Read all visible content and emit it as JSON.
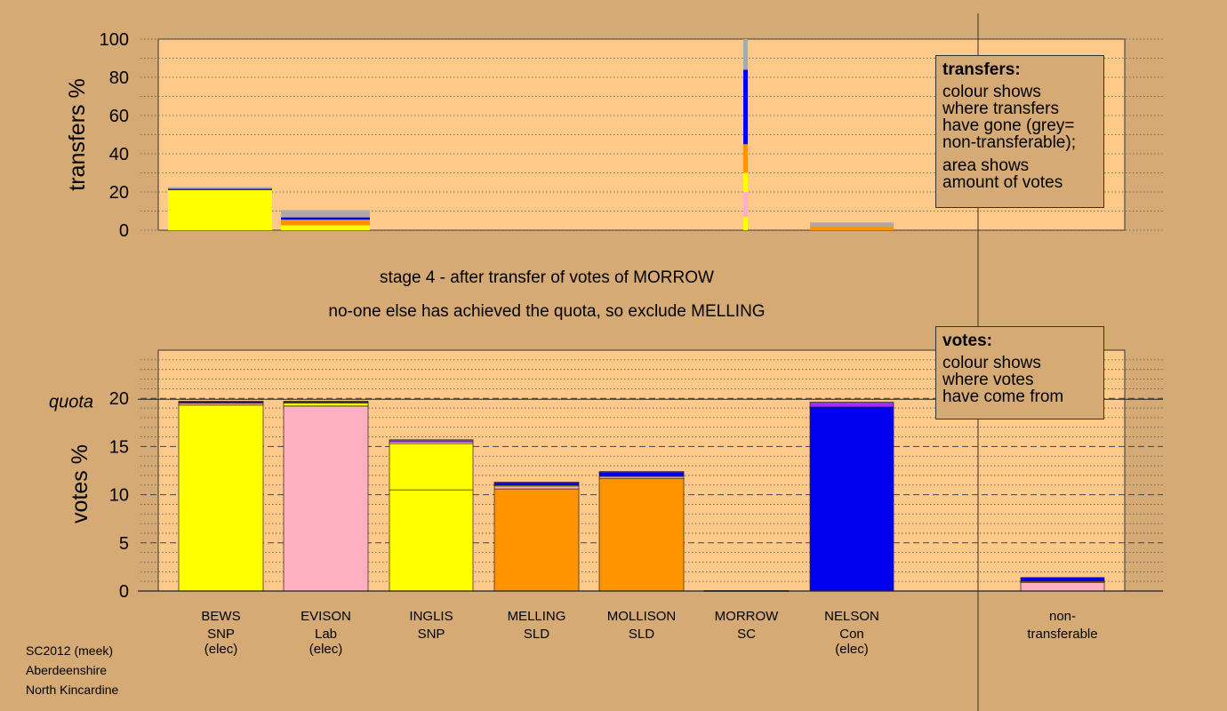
{
  "stage": {
    "line1": "stage 4 - after transfer of votes of MORROW",
    "line2": "no-one else has achieved the quota, so exclude MELLING"
  },
  "footer": {
    "line1": "SC2012 (meek)",
    "line2": "Aberdeenshire",
    "line3": "North Kincardine"
  },
  "legend_transfers": {
    "title": "transfers:",
    "lines": [
      "colour shows",
      "where transfers",
      "have gone (grey=",
      "non-transferable);"
    ],
    "lines2": [
      "area shows",
      "amount of votes"
    ]
  },
  "legend_votes": {
    "title": "votes:",
    "lines": [
      "colour shows",
      "where votes",
      "have come from"
    ]
  },
  "colors": {
    "SNP": "#ffff00",
    "Lab": "#ffb0c0",
    "SLD": "#ff9400",
    "SC": "#9b30ff",
    "Con": "#0000ee",
    "nontransferable": "#aaaaaa",
    "background": "#d5aa75",
    "plot": "#ffc98a"
  },
  "chart_data": [
    {
      "type": "bar",
      "name": "transfers",
      "ylabel": "transfers %",
      "ylim": [
        0,
        100
      ],
      "yticks": [
        0,
        20,
        40,
        60,
        80,
        100
      ],
      "stacked": true,
      "categories": [
        "BEWS",
        "EVISON",
        "INGLIS",
        "MELLING",
        "MOLLISON",
        "MORROW",
        "NELSON"
      ],
      "bars": [
        {
          "candidate": "BEWS",
          "segments": [
            {
              "party": "SNP",
              "value": 21
            },
            {
              "party": "Con",
              "value": 0.7
            },
            {
              "party": "nontransferable",
              "value": 0.8
            }
          ]
        },
        {
          "candidate": "EVISON",
          "segments": [
            {
              "party": "SNP",
              "value": 2.5
            },
            {
              "party": "SLD",
              "value": 3
            },
            {
              "party": "Con",
              "value": 1.2
            },
            {
              "party": "nontransferable",
              "value": 3.8
            }
          ]
        },
        {
          "candidate": "NELSON",
          "segments": [
            {
              "party": "SLD",
              "value": 2
            },
            {
              "party": "nontransferable",
              "value": 2
            }
          ]
        }
      ],
      "morrow_transfer": [
        {
          "party": "SNP",
          "value": 7
        },
        {
          "party": "Lab",
          "value": 13
        },
        {
          "party": "SNP",
          "value": 10
        },
        {
          "party": "SLD",
          "value": 15
        },
        {
          "party": "Con",
          "value": 39
        },
        {
          "party": "nontransferable",
          "value": 16
        }
      ]
    },
    {
      "type": "bar",
      "name": "votes",
      "ylabel": "votes %",
      "ylim": [
        0,
        25
      ],
      "yticks": [
        0,
        5,
        10,
        15,
        20
      ],
      "quota": 19.9,
      "quota_label": "quota",
      "stacked": true,
      "categories": [
        {
          "name": "BEWS",
          "party": "SNP",
          "note": "(elec)"
        },
        {
          "name": "EVISON",
          "party": "Lab",
          "note": "(elec)"
        },
        {
          "name": "INGLIS",
          "party": "SNP",
          "note": ""
        },
        {
          "name": "MELLING",
          "party": "SLD",
          "note": ""
        },
        {
          "name": "MOLLISON",
          "party": "SLD",
          "note": ""
        },
        {
          "name": "MORROW",
          "party": "SC",
          "note": ""
        },
        {
          "name": "NELSON",
          "party": "Con",
          "note": "(elec)"
        }
      ],
      "nontransferable_label": [
        "non-",
        "transferable"
      ],
      "bars": [
        {
          "candidate": "BEWS",
          "segments": [
            {
              "party": "SNP",
              "value": 19.3
            },
            {
              "party": "Lab",
              "value": 0.2
            },
            {
              "party": "Con",
              "value": 0.1
            },
            {
              "party": "SC",
              "value": 0.1
            }
          ]
        },
        {
          "candidate": "EVISON",
          "segments": [
            {
              "party": "Lab",
              "value": 19.2
            },
            {
              "party": "SNP",
              "value": 0.3
            },
            {
              "party": "SLD",
              "value": 0.1
            },
            {
              "party": "SC",
              "value": 0.1
            }
          ]
        },
        {
          "candidate": "INGLIS",
          "segments": [
            {
              "party": "SNP",
              "value": 10.5
            },
            {
              "party": "SNP",
              "value": 4.8
            },
            {
              "party": "Lab",
              "value": 0.2
            },
            {
              "party": "SC",
              "value": 0.2
            }
          ]
        },
        {
          "candidate": "MELLING",
          "segments": [
            {
              "party": "SLD",
              "value": 10.6
            },
            {
              "party": "Lab",
              "value": 0.3
            },
            {
              "party": "SNP",
              "value": 0.1
            },
            {
              "party": "Con",
              "value": 0.2
            },
            {
              "party": "SC",
              "value": 0.1
            }
          ]
        },
        {
          "candidate": "MOLLISON",
          "segments": [
            {
              "party": "SLD",
              "value": 11.7
            },
            {
              "party": "Lab",
              "value": 0.2
            },
            {
              "party": "Con",
              "value": 0.4
            },
            {
              "party": "SC",
              "value": 0.1
            }
          ]
        },
        {
          "candidate": "MORROW",
          "segments": [
            {
              "party": "SC",
              "value": 0.05
            }
          ]
        },
        {
          "candidate": "NELSON",
          "segments": [
            {
              "party": "Con",
              "value": 19.1
            },
            {
              "party": "SC",
              "value": 0.5
            }
          ]
        },
        {
          "candidate": "nontransferable",
          "segments": [
            {
              "party": "Lab",
              "value": 0.9
            },
            {
              "party": "SLD",
              "value": 0.1
            },
            {
              "party": "Con",
              "value": 0.4
            }
          ]
        }
      ]
    }
  ]
}
